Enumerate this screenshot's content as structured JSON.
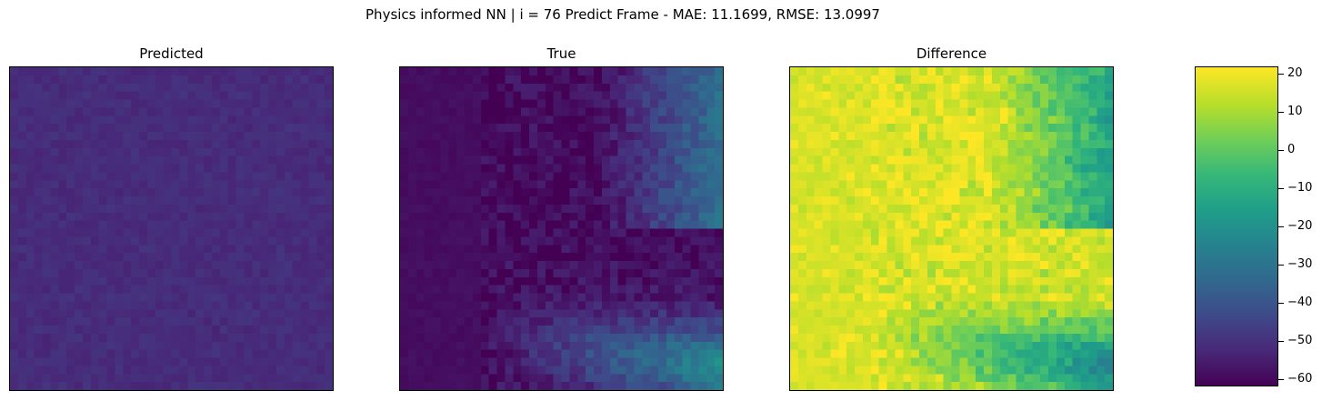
{
  "chart_data": {
    "type": "heatmap",
    "title": "Physics informed NN | i = 76 Predict Frame - MAE: 11.1699, RMSE: 13.0997",
    "panels": [
      {
        "title": "Predicted"
      },
      {
        "title": "True"
      },
      {
        "title": "Difference"
      }
    ],
    "colormap": "viridis",
    "colorbar": {
      "range": [
        -62,
        22
      ],
      "ticks": [
        20,
        10,
        0,
        -10,
        -20,
        -30,
        -40,
        -50,
        -60
      ],
      "tick_labels": [
        "20",
        "10",
        "0",
        "−10",
        "−20",
        "−30",
        "−40",
        "−50",
        "−60"
      ]
    },
    "grid_size": 40,
    "axes_ticks_visible": false
  }
}
